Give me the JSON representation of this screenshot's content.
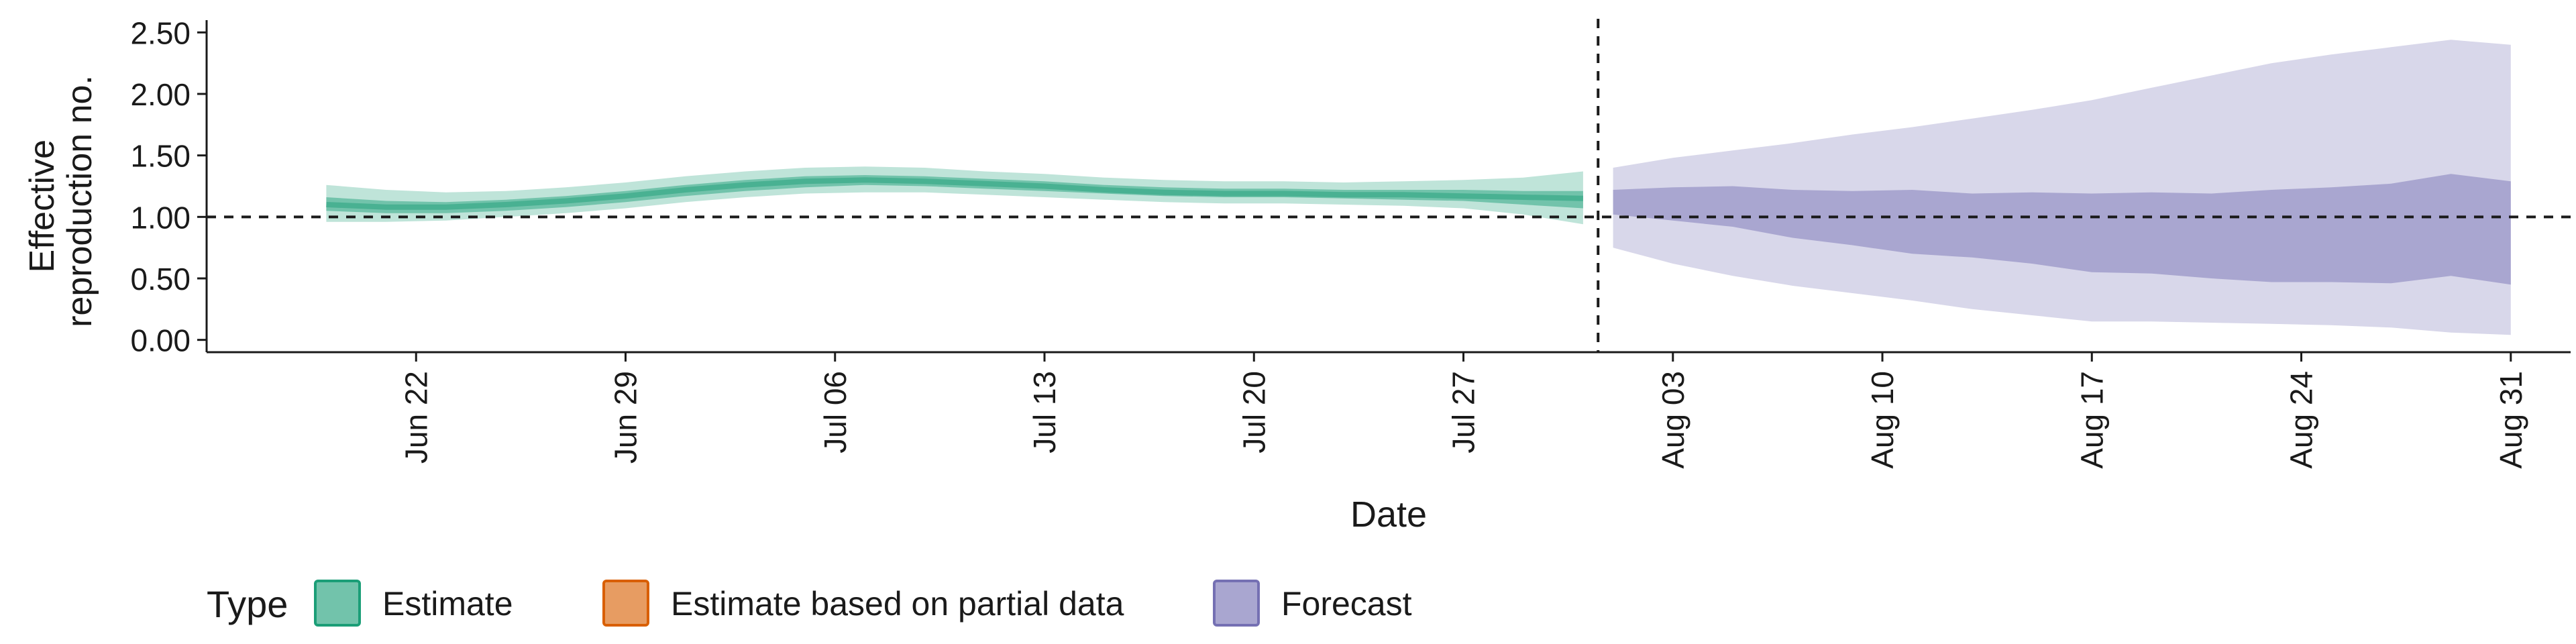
{
  "chart_data": {
    "type": "area",
    "title": "",
    "xlabel": "Date",
    "ylabel": "Effective\nreproduction no.",
    "x_tick_labels": [
      "Jun 22",
      "Jun 29",
      "Jul 06",
      "Jul 13",
      "Jul 20",
      "Jul 27",
      "Aug 03",
      "Aug 10",
      "Aug 17",
      "Aug 24",
      "Aug 31"
    ],
    "y_ticks": [
      0.0,
      0.5,
      1.0,
      1.5,
      2.0,
      2.5
    ],
    "y_tick_labels": [
      "0.00",
      "0.50",
      "1.00",
      "1.50",
      "2.00",
      "2.50"
    ],
    "ylim": [
      -0.1,
      2.6
    ],
    "x_range": [
      "2020-06-15",
      "2020-09-02"
    ],
    "reference_line_y": 1.0,
    "forecast_start_line": "2020-08-01",
    "grid": false,
    "legend_title": "Type",
    "legend_position": "bottom",
    "colors": {
      "Estimate": "#1b9e77",
      "Estimate based on partial data": "#d95f02",
      "Forecast": "#7570b3"
    },
    "series": [
      {
        "name": "Estimate",
        "x": [
          "2020-06-19",
          "2020-06-21",
          "2020-06-23",
          "2020-06-25",
          "2020-06-27",
          "2020-06-29",
          "2020-07-01",
          "2020-07-03",
          "2020-07-05",
          "2020-07-07",
          "2020-07-09",
          "2020-07-11",
          "2020-07-13",
          "2020-07-15",
          "2020-07-17",
          "2020-07-19",
          "2020-07-21",
          "2020-07-23",
          "2020-07-25",
          "2020-07-27",
          "2020-07-29",
          "2020-07-31"
        ],
        "median": [
          1.1,
          1.08,
          1.08,
          1.1,
          1.13,
          1.17,
          1.22,
          1.26,
          1.29,
          1.3,
          1.29,
          1.27,
          1.25,
          1.22,
          1.2,
          1.19,
          1.19,
          1.18,
          1.18,
          1.17,
          1.16,
          1.15
        ],
        "lower_50": [
          1.05,
          1.03,
          1.03,
          1.05,
          1.08,
          1.12,
          1.17,
          1.21,
          1.24,
          1.26,
          1.25,
          1.23,
          1.21,
          1.19,
          1.17,
          1.16,
          1.16,
          1.15,
          1.14,
          1.13,
          1.1,
          1.07
        ],
        "upper_50": [
          1.16,
          1.13,
          1.12,
          1.14,
          1.17,
          1.21,
          1.26,
          1.3,
          1.33,
          1.34,
          1.33,
          1.31,
          1.29,
          1.26,
          1.24,
          1.23,
          1.23,
          1.22,
          1.22,
          1.22,
          1.21,
          1.21
        ],
        "lower_90": [
          0.96,
          0.96,
          0.97,
          1.0,
          1.03,
          1.07,
          1.12,
          1.16,
          1.19,
          1.2,
          1.2,
          1.18,
          1.16,
          1.14,
          1.12,
          1.11,
          1.11,
          1.1,
          1.09,
          1.07,
          1.02,
          0.94
        ],
        "upper_90": [
          1.26,
          1.22,
          1.2,
          1.21,
          1.24,
          1.28,
          1.33,
          1.37,
          1.4,
          1.41,
          1.4,
          1.37,
          1.35,
          1.32,
          1.3,
          1.29,
          1.29,
          1.28,
          1.29,
          1.3,
          1.32,
          1.37
        ]
      },
      {
        "name": "Estimate based on partial data",
        "x": [],
        "lower_50": [],
        "upper_50": [],
        "lower_90": [],
        "upper_90": []
      },
      {
        "name": "Forecast",
        "x": [
          "2020-08-01",
          "2020-08-03",
          "2020-08-05",
          "2020-08-07",
          "2020-08-09",
          "2020-08-11",
          "2020-08-13",
          "2020-08-15",
          "2020-08-17",
          "2020-08-19",
          "2020-08-21",
          "2020-08-23",
          "2020-08-25",
          "2020-08-27",
          "2020-08-29",
          "2020-08-31"
        ],
        "lower_50": [
          1.02,
          0.97,
          0.92,
          0.83,
          0.77,
          0.7,
          0.67,
          0.62,
          0.55,
          0.54,
          0.5,
          0.47,
          0.47,
          0.46,
          0.52,
          0.45
        ],
        "upper_50": [
          1.22,
          1.24,
          1.25,
          1.22,
          1.21,
          1.22,
          1.19,
          1.2,
          1.19,
          1.2,
          1.19,
          1.22,
          1.24,
          1.27,
          1.35,
          1.29
        ],
        "lower_90": [
          0.75,
          0.62,
          0.52,
          0.44,
          0.38,
          0.32,
          0.25,
          0.2,
          0.15,
          0.15,
          0.14,
          0.13,
          0.12,
          0.1,
          0.06,
          0.04
        ],
        "upper_90": [
          1.4,
          1.48,
          1.54,
          1.6,
          1.67,
          1.73,
          1.8,
          1.87,
          1.95,
          2.05,
          2.15,
          2.25,
          2.32,
          2.38,
          2.44,
          2.4
        ]
      }
    ]
  }
}
